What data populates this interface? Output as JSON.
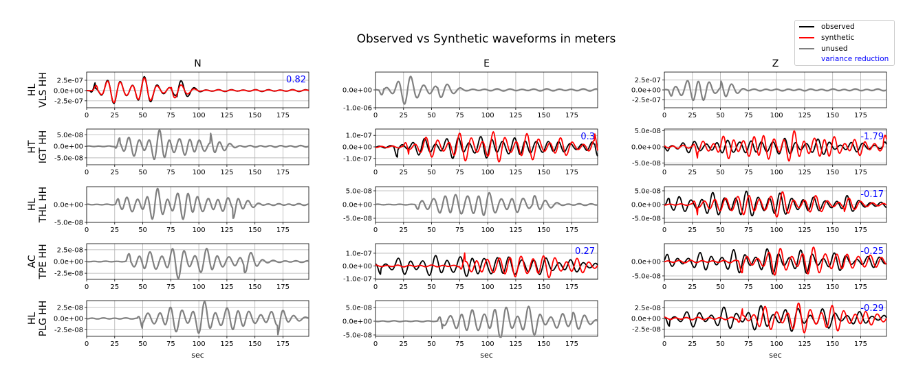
{
  "chart_data": {
    "type": "line",
    "title": "Observed vs Synthetic waveforms in meters",
    "xlabel": "sec",
    "xlim": [
      0,
      198
    ],
    "xticks": [
      0,
      25,
      50,
      75,
      100,
      125,
      150,
      175
    ],
    "grid": true,
    "legend_position": "top-right",
    "legend": [
      {
        "label": "observed",
        "color": "#000000"
      },
      {
        "label": "synthetic",
        "color": "#ff0000"
      },
      {
        "label": "unused",
        "color": "#808080"
      },
      {
        "label": "variance reduction",
        "color": "#0000ff"
      }
    ],
    "columns": [
      "N",
      "E",
      "Z"
    ],
    "rows": [
      {
        "label_line1": "HL",
        "label_line2": "VLS HH"
      },
      {
        "label_line1": "HT",
        "label_line2": "IGT HH"
      },
      {
        "label_line1": "HL",
        "label_line2": "THL HH"
      },
      {
        "label_line1": "AC",
        "label_line2": "TPE HH"
      },
      {
        "label_line1": "HL",
        "label_line2": "PLG HH"
      }
    ],
    "panels": [
      [
        {
          "used": true,
          "ylim": [
            -4.2e-07,
            4.5e-07
          ],
          "ytick_vals": [
            2.5e-07,
            0,
            -2.5e-07
          ],
          "ytick_labels": [
            "2.5e-07",
            "0.0e+00",
            "-2.5e-07"
          ],
          "vr": "0.82",
          "obs": {
            "amp": 3.8e-07,
            "t0": 8,
            "t1": 80,
            "p": 11,
            "tail": 0.06,
            "seed": 1
          },
          "syn": {
            "amp": 3.6e-07,
            "t0": 10,
            "t1": 75,
            "p": 11,
            "tail": 0.05,
            "seed": 1
          }
        },
        {
          "used": false,
          "ylim": [
            -1e-06,
            1e-06
          ],
          "ytick_vals": [
            0,
            -1e-06
          ],
          "ytick_labels": [
            "0.0e+00",
            "-1.0e-06"
          ],
          "unused": {
            "amp": 8.5e-07,
            "t0": 8,
            "t1": 55,
            "p": 11,
            "tail": 0.07,
            "seed": 2
          }
        },
        {
          "used": false,
          "ylim": [
            -4.5e-07,
            4.5e-07
          ],
          "ytick_vals": [
            2.5e-07,
            0,
            -2.5e-07
          ],
          "ytick_labels": [
            "2.5e-07",
            "0.0e+00",
            "-2.5e-07"
          ],
          "unused": {
            "amp": 4e-07,
            "t0": 8,
            "t1": 50,
            "p": 10,
            "tail": 0.06,
            "seed": 3
          }
        }
      ],
      [
        {
          "used": false,
          "ylim": [
            -8e-08,
            7.5e-08
          ],
          "ytick_vals": [
            5e-08,
            0,
            -5e-08
          ],
          "ytick_labels": [
            "5.0e-08",
            "0.0e+00",
            "-5.0e-08"
          ],
          "unused": {
            "amp": 7e-08,
            "t0": 30,
            "t1": 110,
            "p": 9,
            "tail": 0.05,
            "seed": 4
          }
        },
        {
          "used": true,
          "ylim": [
            -1.55e-07,
            1.55e-07
          ],
          "ytick_vals": [
            1e-07,
            0,
            -1e-07
          ],
          "ytick_labels": [
            "1.0e-07",
            "0.0e+00",
            "-1.0e-07"
          ],
          "vr": "0.3",
          "obs": {
            "amp": 1.1e-07,
            "t0": 20,
            "t1": 195,
            "p": 10,
            "tail": 0.25,
            "seed": 5
          },
          "syn": {
            "amp": 1.4e-07,
            "t0": 30,
            "t1": 195,
            "p": 10,
            "tail": 0.15,
            "seed": 6
          }
        },
        {
          "used": true,
          "ylim": [
            -5.5e-08,
            5.5e-08
          ],
          "ytick_vals": [
            5e-08,
            0,
            -5e-08
          ],
          "ytick_labels": [
            "5.0e-08",
            "0.0e+00",
            "-5.0e-08"
          ],
          "vr": "-1.79",
          "obs": {
            "amp": 3e-08,
            "t0": 5,
            "t1": 195,
            "p": 10,
            "tail": 0.4,
            "seed": 7
          },
          "syn": {
            "amp": 5e-08,
            "t0": 30,
            "t1": 195,
            "p": 9,
            "tail": 0.25,
            "seed": 8
          }
        }
      ],
      [
        {
          "used": false,
          "ylim": [
            -5e-08,
            5e-08
          ],
          "ytick_vals": [
            0,
            -5e-08
          ],
          "ytick_labels": [
            "0.0e+00",
            "-5.0e-08"
          ],
          "unused": {
            "amp": 4.8e-08,
            "t0": 30,
            "t1": 130,
            "p": 9,
            "tail": 0.05,
            "seed": 9
          }
        },
        {
          "used": false,
          "ylim": [
            -6.5e-08,
            6.5e-08
          ],
          "ytick_vals": [
            5e-08,
            0,
            -5e-08
          ],
          "ytick_labels": [
            "5.0e-08",
            "0.0e+00",
            "-5.0e-08"
          ],
          "unused": {
            "amp": 6e-08,
            "t0": 40,
            "t1": 140,
            "p": 10,
            "tail": 0.05,
            "seed": 10
          }
        },
        {
          "used": true,
          "ylim": [
            -6.5e-08,
            6.5e-08
          ],
          "ytick_vals": [
            5e-08,
            0,
            -5e-08
          ],
          "ytick_labels": [
            "5.0e-08",
            "0.0e+00",
            "-5.0e-08"
          ],
          "vr": "-0.17",
          "obs": {
            "amp": 5.5e-08,
            "t0": 5,
            "t1": 160,
            "p": 10,
            "tail": 0.2,
            "seed": 11
          },
          "syn": {
            "amp": 5e-08,
            "t0": 30,
            "t1": 160,
            "p": 10,
            "tail": 0.15,
            "seed": 12
          }
        }
      ],
      [
        {
          "used": false,
          "ylim": [
            -3.8e-08,
            3.8e-08
          ],
          "ytick_vals": [
            2.5e-08,
            0,
            -2.5e-08
          ],
          "ytick_labels": [
            "2.5e-08",
            "0.0e+00",
            "-2.5e-08"
          ],
          "unused": {
            "amp": 3.5e-08,
            "t0": 40,
            "t1": 140,
            "p": 10,
            "tail": 0.05,
            "seed": 13
          }
        },
        {
          "used": true,
          "ylim": [
            -1.05e-07,
            1.75e-07
          ],
          "ytick_vals": [
            1e-07,
            0,
            -1e-07
          ],
          "ytick_labels": [
            "1.0e-07",
            "0.0e+00",
            "-1.0e-07"
          ],
          "vr": "0.27",
          "obs": {
            "amp": 1.1e-07,
            "t0": 5,
            "t1": 198,
            "p": 11,
            "tail": 0.5,
            "seed": 14
          },
          "syn": {
            "amp": 1.2e-07,
            "t0": 80,
            "t1": 198,
            "p": 10,
            "tail": 0.15,
            "seed": 15
          }
        },
        {
          "used": true,
          "ylim": [
            -6.2e-08,
            6.2e-08
          ],
          "ytick_vals": [
            0,
            -5e-08
          ],
          "ytick_labels": [
            "0.0e+00",
            "-5.0e-08"
          ],
          "vr": "-0.25",
          "obs": {
            "amp": 4.5e-08,
            "t0": 5,
            "t1": 198,
            "p": 10,
            "tail": 0.45,
            "seed": 16
          },
          "syn": {
            "amp": 5.5e-08,
            "t0": 70,
            "t1": 198,
            "p": 10,
            "tail": 0.2,
            "seed": 17
          }
        }
      ],
      [
        {
          "used": false,
          "ylim": [
            -4e-08,
            4e-08
          ],
          "ytick_vals": [
            2.5e-08,
            0,
            -2.5e-08
          ],
          "ytick_labels": [
            "2.5e-08",
            "0.0e+00",
            "-2.5e-08"
          ],
          "unused": {
            "amp": 3.8e-08,
            "t0": 50,
            "t1": 170,
            "p": 10,
            "tail": 0.08,
            "seed": 18
          }
        },
        {
          "used": false,
          "ylim": [
            -5.5e-08,
            7.5e-08
          ],
          "ytick_vals": [
            5e-08,
            0,
            -5e-08
          ],
          "ytick_labels": [
            "5.0e-08",
            "0.0e+00",
            "-5.0e-08"
          ],
          "unused": {
            "amp": 6.5e-08,
            "t0": 60,
            "t1": 175,
            "p": 10,
            "tail": 0.06,
            "seed": 19
          }
        },
        {
          "used": true,
          "ylim": [
            -4.2e-08,
            4.2e-08
          ],
          "ytick_vals": [
            2.5e-08,
            0,
            -2.5e-08
          ],
          "ytick_labels": [
            "2.5e-08",
            "0.0e+00",
            "-2.5e-08"
          ],
          "vr": "-0.29",
          "obs": {
            "amp": 3e-08,
            "t0": 5,
            "t1": 198,
            "p": 11,
            "tail": 0.45,
            "seed": 20
          },
          "syn": {
            "amp": 3.8e-08,
            "t0": 70,
            "t1": 198,
            "p": 10,
            "tail": 0.2,
            "seed": 21
          }
        }
      ]
    ]
  }
}
